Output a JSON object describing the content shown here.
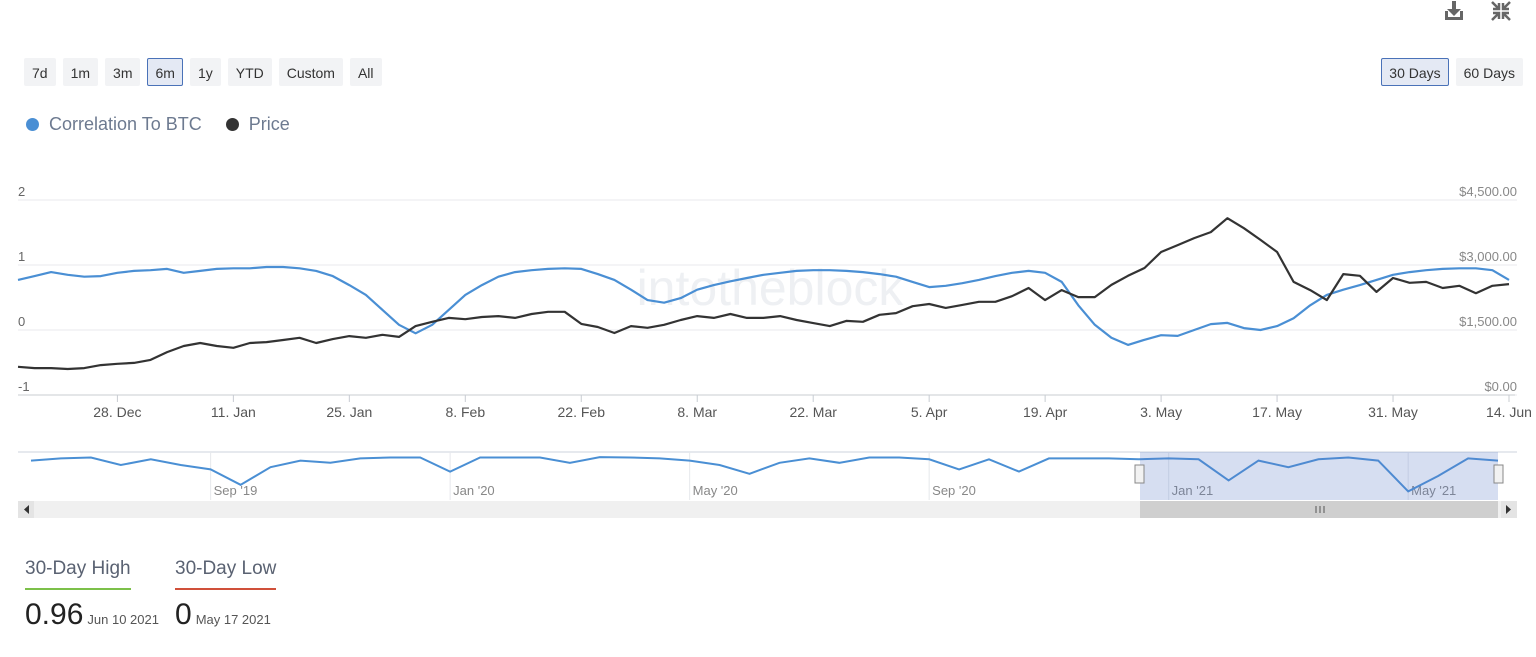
{
  "range_buttons": [
    "7d",
    "1m",
    "3m",
    "6m",
    "1y",
    "YTD",
    "Custom",
    "All"
  ],
  "selected_range": "6m",
  "window_buttons": [
    "30 Days",
    "60 Days"
  ],
  "selected_window": "30 Days",
  "watermark": "intotheblock",
  "chart_data": [
    {
      "type": "line",
      "categories": [
        null,
        null,
        null,
        null,
        null,
        null,
        "28. Dec",
        null,
        null,
        null,
        null,
        null,
        null,
        "11. Jan",
        null,
        null,
        null,
        null,
        null,
        null,
        "25. Jan",
        null,
        null,
        null,
        null,
        null,
        null,
        "8. Feb",
        null,
        null,
        null,
        null,
        null,
        null,
        "22. Feb",
        null,
        null,
        null,
        null,
        null,
        null,
        "8. Mar",
        null,
        null,
        null,
        null,
        null,
        null,
        "22. Mar",
        null,
        null,
        null,
        null,
        null,
        null,
        "5. Apr",
        null,
        null,
        null,
        null,
        null,
        null,
        "19. Apr",
        null,
        null,
        null,
        null,
        null,
        null,
        "3. May",
        null,
        null,
        null,
        null,
        null,
        null,
        "17. May",
        null,
        null,
        null,
        null,
        null,
        null,
        "31. May",
        null,
        null,
        null,
        null,
        null,
        null,
        "14. Jun"
      ],
      "series": [
        {
          "name": "Correlation To BTC",
          "color": "#4a8fd4",
          "values": [
            0.77,
            0.83,
            0.89,
            0.85,
            0.82,
            0.83,
            0.88,
            0.91,
            0.92,
            0.94,
            0.88,
            0.91,
            0.94,
            0.95,
            0.95,
            0.97,
            0.97,
            0.95,
            0.91,
            0.83,
            0.69,
            0.54,
            0.31,
            0.08,
            -0.05,
            0.08,
            0.31,
            0.54,
            0.69,
            0.82,
            0.89,
            0.92,
            0.94,
            0.95,
            0.94,
            0.86,
            0.77,
            0.62,
            0.46,
            0.42,
            0.49,
            0.62,
            0.69,
            0.75,
            0.8,
            0.85,
            0.88,
            0.91,
            0.92,
            0.92,
            0.91,
            0.89,
            0.86,
            0.82,
            0.74,
            0.66,
            0.68,
            0.72,
            0.77,
            0.83,
            0.88,
            0.91,
            0.88,
            0.74,
            0.38,
            0.08,
            -0.12,
            -0.23,
            -0.15,
            -0.08,
            -0.09,
            0,
            0.09,
            0.11,
            0.03,
            0,
            0.06,
            0.18,
            0.38,
            0.54,
            0.62,
            0.69,
            0.77,
            0.85,
            0.89,
            0.92,
            0.94,
            0.95,
            0.95,
            0.92,
            0.77
          ]
        },
        {
          "name": "Price",
          "color": "#333333",
          "axis": "y2",
          "values": [
            650,
            620,
            620,
            600,
            620,
            690,
            720,
            740,
            810,
            990,
            1130,
            1200,
            1130,
            1090,
            1200,
            1220,
            1270,
            1320,
            1200,
            1290,
            1360,
            1320,
            1390,
            1340,
            1590,
            1690,
            1780,
            1750,
            1800,
            1820,
            1780,
            1870,
            1920,
            1920,
            1640,
            1570,
            1430,
            1590,
            1550,
            1620,
            1730,
            1820,
            1780,
            1870,
            1780,
            1780,
            1820,
            1730,
            1660,
            1590,
            1710,
            1690,
            1850,
            1890,
            2050,
            2100,
            2010,
            2080,
            2150,
            2150,
            2280,
            2470,
            2190,
            2420,
            2260,
            2260,
            2540,
            2750,
            2930,
            3300,
            3460,
            3620,
            3760,
            4080,
            3850,
            3580,
            3300,
            2610,
            2420,
            2190,
            2790,
            2750,
            2380,
            2700,
            2590,
            2610,
            2470,
            2520,
            2350,
            2520,
            2560
          ]
        }
      ],
      "ylim": [
        -1,
        2
      ],
      "yticks": [
        2,
        1,
        0,
        -1
      ],
      "y2lim": [
        0,
        4500
      ],
      "y2ticks": [
        {
          "value": 4500,
          "label": "$4,500.00"
        },
        {
          "value": 3000,
          "label": "$3,000.00"
        },
        {
          "value": 1500,
          "label": "$1,500.00"
        },
        {
          "value": 0,
          "label": "$0.00"
        }
      ],
      "grid": true
    },
    {
      "type": "navigator",
      "categories": [
        null,
        null,
        null,
        null,
        null,
        null,
        "Sep '19",
        null,
        null,
        null,
        null,
        null,
        null,
        null,
        "Jan '20",
        null,
        null,
        null,
        null,
        null,
        null,
        null,
        "May '20",
        null,
        null,
        null,
        null,
        null,
        null,
        null,
        "Sep '20",
        null,
        null,
        null,
        null,
        null,
        null,
        null,
        "Jan '21",
        null,
        null,
        null,
        null,
        null,
        null,
        null,
        "May '21",
        null,
        null,
        null
      ],
      "color": "#4a8fd4",
      "values": [
        0.85,
        0.9,
        0.92,
        0.75,
        0.88,
        0.75,
        0.65,
        0.3,
        0.7,
        0.85,
        0.8,
        0.9,
        0.92,
        0.92,
        0.6,
        0.92,
        0.92,
        0.92,
        0.8,
        0.93,
        0.92,
        0.9,
        0.85,
        0.75,
        0.55,
        0.8,
        0.9,
        0.8,
        0.92,
        0.92,
        0.88,
        0.65,
        0.88,
        0.6,
        0.9,
        0.9,
        0.9,
        0.88,
        0.9,
        0.88,
        0.4,
        0.85,
        0.7,
        0.88,
        0.92,
        0.85,
        0.15,
        0.5,
        0.9,
        0.85
      ],
      "ylim": [
        0,
        1
      ]
    }
  ],
  "stats": [
    {
      "label": "30-Day High",
      "value": 0.96,
      "date": "Jun 10 2021",
      "color": "#7cc04a"
    },
    {
      "label": "30-Day Low",
      "value": 0,
      "date": "May 17 2021",
      "color": "#d0503a"
    }
  ]
}
